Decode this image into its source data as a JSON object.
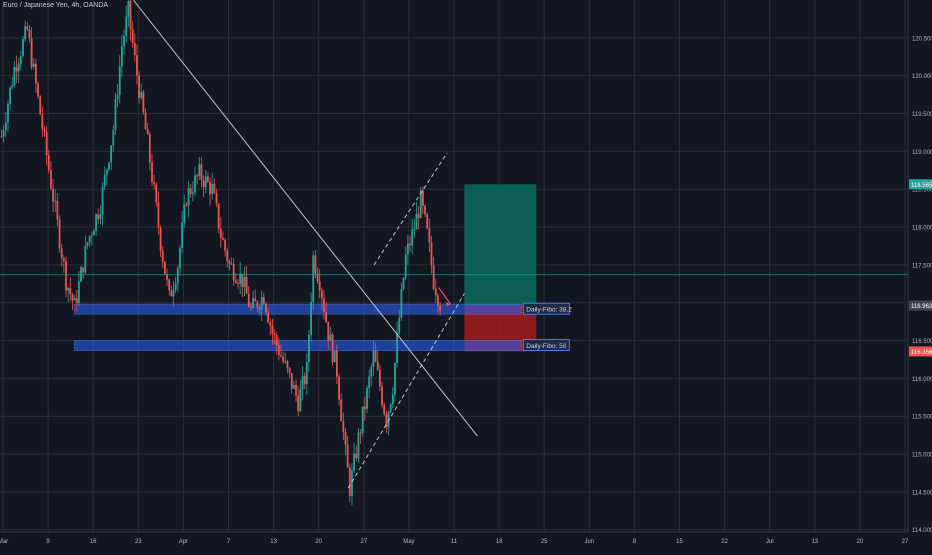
{
  "header": {
    "symbol": "Euro / Japanese Yen, 4h, OANDA"
  },
  "colors": {
    "background": "#131722",
    "grid": "#2a2e39",
    "axis_text": "#b2b5be",
    "candle_up": "#26a69a",
    "candle_down": "#ef5350",
    "trendline": "#d1d4dc",
    "fibo_zone": "#2962ff",
    "target_zone": "#0b6b5c",
    "stop_zone": "#b71c1c",
    "last_price_line": "#26a69a"
  },
  "chart_data": {
    "type": "candlestick",
    "title": "Euro / Japanese Yen, 4h, OANDA",
    "ylim": [
      113.97,
      121.0
    ],
    "y_ticks": [
      "120.500",
      "120.000",
      "119.500",
      "119.000",
      "118.500",
      "118.000",
      "117.500",
      "117.000",
      "116.500",
      "116.000",
      "115.500",
      "115.000",
      "114.500",
      "114.000"
    ],
    "x_labels": [
      "Mar",
      "9",
      "16",
      "23",
      "Apr",
      "7",
      "13",
      "20",
      "27",
      "May",
      "11",
      "18",
      "25",
      "Jun",
      "8",
      "15",
      "22",
      "Jul",
      "13",
      "20",
      "27"
    ],
    "price_path": [
      {
        "x": 0,
        "y": 119.2
      },
      {
        "x": 3,
        "y": 120.1
      },
      {
        "x": 6,
        "y": 120.6
      },
      {
        "x": 9,
        "y": 119.5
      },
      {
        "x": 12,
        "y": 118.4
      },
      {
        "x": 15,
        "y": 117.3
      },
      {
        "x": 17,
        "y": 116.95
      },
      {
        "x": 20,
        "y": 117.8
      },
      {
        "x": 23,
        "y": 118.3
      },
      {
        "x": 26,
        "y": 119.3
      },
      {
        "x": 28,
        "y": 120.4
      },
      {
        "x": 29.5,
        "y": 120.85
      },
      {
        "x": 31,
        "y": 120.2
      },
      {
        "x": 34,
        "y": 119.1
      },
      {
        "x": 37,
        "y": 117.8
      },
      {
        "x": 39,
        "y": 117.05
      },
      {
        "x": 41,
        "y": 117.5
      },
      {
        "x": 43,
        "y": 118.4
      },
      {
        "x": 46,
        "y": 118.7
      },
      {
        "x": 49,
        "y": 118.5
      },
      {
        "x": 51,
        "y": 117.9
      },
      {
        "x": 53,
        "y": 117.5
      },
      {
        "x": 56,
        "y": 117.3
      },
      {
        "x": 58,
        "y": 116.9
      },
      {
        "x": 61,
        "y": 117.1
      },
      {
        "x": 63,
        "y": 116.6
      },
      {
        "x": 65,
        "y": 116.3
      },
      {
        "x": 67,
        "y": 116.0
      },
      {
        "x": 69,
        "y": 115.7
      },
      {
        "x": 71,
        "y": 116.1
      },
      {
        "x": 72.5,
        "y": 117.6
      },
      {
        "x": 74,
        "y": 117.3
      },
      {
        "x": 76,
        "y": 116.6
      },
      {
        "x": 78,
        "y": 116.1
      },
      {
        "x": 80,
        "y": 115.0
      },
      {
        "x": 81,
        "y": 114.55
      },
      {
        "x": 83,
        "y": 115.2
      },
      {
        "x": 85,
        "y": 115.8
      },
      {
        "x": 86.5,
        "y": 116.3
      },
      {
        "x": 88,
        "y": 115.9
      },
      {
        "x": 89.5,
        "y": 115.45
      },
      {
        "x": 91,
        "y": 115.9
      },
      {
        "x": 92.5,
        "y": 116.8
      },
      {
        "x": 94,
        "y": 117.6
      },
      {
        "x": 96,
        "y": 118.0
      },
      {
        "x": 97.5,
        "y": 118.35
      },
      {
        "x": 99,
        "y": 117.9
      },
      {
        "x": 100.5,
        "y": 117.3
      },
      {
        "x": 102,
        "y": 117.0
      }
    ],
    "trendlines": [
      {
        "from": {
          "x": 31,
          "y": 121.0
        },
        "to": {
          "x": 111,
          "y": 115.24
        },
        "style": "solid"
      },
      {
        "from": {
          "x": 81,
          "y": 114.55
        },
        "to": {
          "x": 108,
          "y": 117.12
        },
        "style": "dashed"
      },
      {
        "from": {
          "x": 87,
          "y": 117.5
        },
        "to": {
          "x": 104,
          "y": 118.98
        },
        "style": "dashed"
      }
    ],
    "fibo_zones": [
      {
        "label": "Daily-Fibo: 38,2",
        "y_top": 116.98,
        "y_bottom": 116.85,
        "x_from": 14,
        "x_to": 121
      },
      {
        "label": "Daily-Fibo: 50",
        "y_top": 116.5,
        "y_bottom": 116.37,
        "x_from": 14,
        "x_to": 121
      }
    ],
    "position": {
      "entry": 116.963,
      "target": 118.565,
      "stop": 116.356,
      "x_from": 108,
      "x_to": 121
    },
    "last_price": 117.37,
    "price_labels": {
      "target": {
        "value": "118.565",
        "color": "#26a69a"
      },
      "entry": {
        "value": "116.963",
        "color": "#434651"
      },
      "stop": {
        "value": "116.356",
        "color": "#ef5350"
      }
    }
  }
}
